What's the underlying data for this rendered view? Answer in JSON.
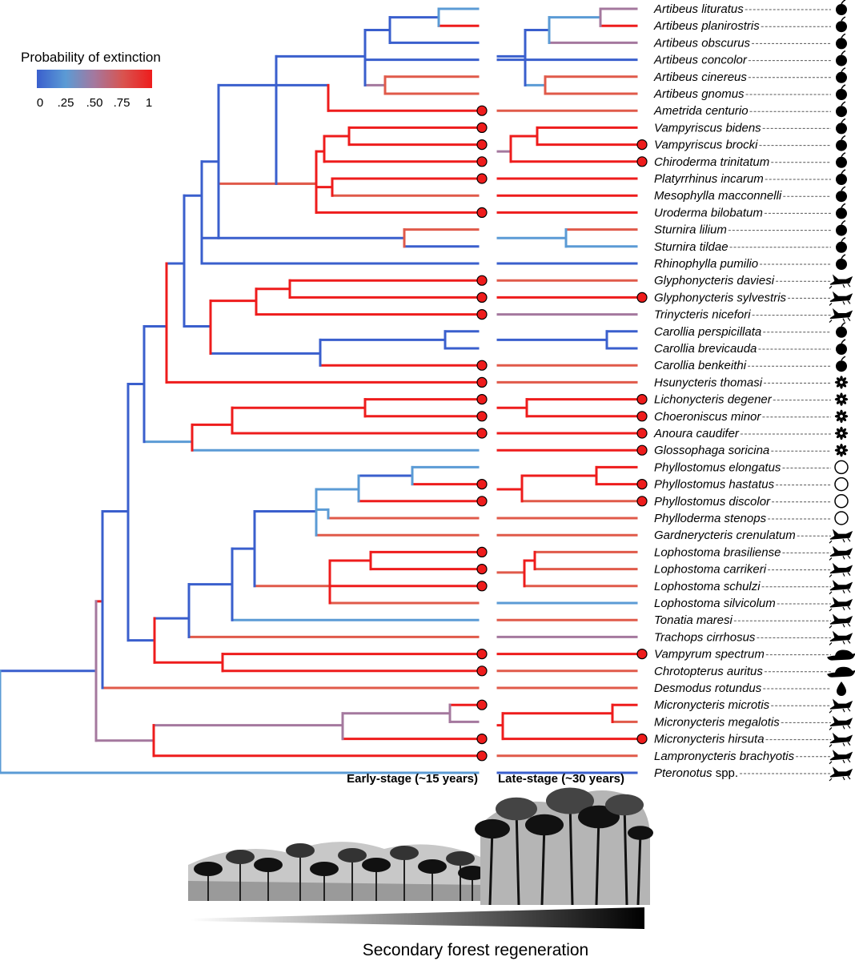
{
  "legend": {
    "title": "Probability of extinction",
    "ticks": [
      "0",
      ".25",
      ".50",
      ".75",
      "1"
    ],
    "gradient": [
      "#3a5fcd",
      "#5b9bd5",
      "#a4789e",
      "#d9534f",
      "#ee1c1c"
    ]
  },
  "colors": {
    "blue": "#3a5fcd",
    "lightblue": "#5b9bd5",
    "mauve": "#a4789e",
    "red": "#ee1c1c",
    "salmon": "#e05a4a",
    "extinct_dot": "#ee1c1c"
  },
  "species": [
    {
      "name": "Artibeus lituratus",
      "suffix": "",
      "diet": "fruit",
      "early_extinct": false,
      "late_extinct": false
    },
    {
      "name": "Artibeus planirostris",
      "suffix": "",
      "diet": "fruit",
      "early_extinct": false,
      "late_extinct": false
    },
    {
      "name": "Artibeus obscurus",
      "suffix": "",
      "diet": "fruit",
      "early_extinct": false,
      "late_extinct": false
    },
    {
      "name": "Artibeus concolor",
      "suffix": "",
      "diet": "fruit",
      "early_extinct": false,
      "late_extinct": false
    },
    {
      "name": "Artibeus cinereus",
      "suffix": "",
      "diet": "fruit",
      "early_extinct": false,
      "late_extinct": false
    },
    {
      "name": "Artibeus gnomus",
      "suffix": "",
      "diet": "fruit",
      "early_extinct": false,
      "late_extinct": false
    },
    {
      "name": "Ametrida centurio",
      "suffix": "",
      "diet": "fruit",
      "early_extinct": true,
      "late_extinct": false
    },
    {
      "name": "Vampyriscus bidens",
      "suffix": "",
      "diet": "fruit",
      "early_extinct": true,
      "late_extinct": false
    },
    {
      "name": "Vampyriscus brocki",
      "suffix": "",
      "diet": "fruit",
      "early_extinct": true,
      "late_extinct": true
    },
    {
      "name": "Chiroderma trinitatum",
      "suffix": "",
      "diet": "fruit",
      "early_extinct": true,
      "late_extinct": true
    },
    {
      "name": "Platyrrhinus incarum",
      "suffix": "",
      "diet": "fruit",
      "early_extinct": true,
      "late_extinct": false
    },
    {
      "name": "Mesophylla macconnelli",
      "suffix": "",
      "diet": "fruit",
      "early_extinct": false,
      "late_extinct": false
    },
    {
      "name": "Uroderma bilobatum",
      "suffix": "",
      "diet": "fruit",
      "early_extinct": true,
      "late_extinct": false
    },
    {
      "name": "Sturnira lilium",
      "suffix": "",
      "diet": "fruit",
      "early_extinct": false,
      "late_extinct": false
    },
    {
      "name": "Sturnira tildae",
      "suffix": "",
      "diet": "fruit",
      "early_extinct": false,
      "late_extinct": false
    },
    {
      "name": "Rhinophylla pumilio",
      "suffix": "",
      "diet": "fruit",
      "early_extinct": false,
      "late_extinct": false
    },
    {
      "name": "Glyphonycteris daviesi",
      "suffix": "",
      "diet": "insect",
      "early_extinct": true,
      "late_extinct": false
    },
    {
      "name": "Glyphonycteris sylvestris",
      "suffix": "",
      "diet": "insect",
      "early_extinct": true,
      "late_extinct": true
    },
    {
      "name": "Trinycteris nicefori",
      "suffix": "",
      "diet": "insect",
      "early_extinct": true,
      "late_extinct": false
    },
    {
      "name": "Carollia perspicillata",
      "suffix": "",
      "diet": "fruit",
      "early_extinct": false,
      "late_extinct": false
    },
    {
      "name": "Carollia brevicauda",
      "suffix": "",
      "diet": "fruit",
      "early_extinct": false,
      "late_extinct": false
    },
    {
      "name": "Carollia benkeithi",
      "suffix": "",
      "diet": "fruit",
      "early_extinct": true,
      "late_extinct": false
    },
    {
      "name": "Hsunycteris thomasi",
      "suffix": "",
      "diet": "nectar",
      "early_extinct": true,
      "late_extinct": false
    },
    {
      "name": "Lichonycteris degener",
      "suffix": "",
      "diet": "nectar",
      "early_extinct": true,
      "late_extinct": true
    },
    {
      "name": "Choeroniscus minor",
      "suffix": "",
      "diet": "nectar",
      "early_extinct": true,
      "late_extinct": true
    },
    {
      "name": "Anoura caudifer",
      "suffix": "",
      "diet": "nectar",
      "early_extinct": true,
      "late_extinct": true
    },
    {
      "name": "Glossophaga soricina",
      "suffix": "",
      "diet": "nectar",
      "early_extinct": false,
      "late_extinct": true
    },
    {
      "name": "Phyllostomus elongatus",
      "suffix": "",
      "diet": "omnivore",
      "early_extinct": false,
      "late_extinct": false
    },
    {
      "name": "Phyllostomus hastatus",
      "suffix": "",
      "diet": "omnivore",
      "early_extinct": true,
      "late_extinct": true
    },
    {
      "name": "Phyllostomus discolor",
      "suffix": "",
      "diet": "omnivore",
      "early_extinct": true,
      "late_extinct": true
    },
    {
      "name": "Phylloderma stenops",
      "suffix": "",
      "diet": "omnivore",
      "early_extinct": false,
      "late_extinct": false
    },
    {
      "name": "Gardnerycteris crenulatum",
      "suffix": "",
      "diet": "insect",
      "early_extinct": false,
      "late_extinct": false
    },
    {
      "name": "Lophostoma brasiliense",
      "suffix": "",
      "diet": "insect",
      "early_extinct": true,
      "late_extinct": false
    },
    {
      "name": "Lophostoma carrikeri",
      "suffix": "",
      "diet": "insect",
      "early_extinct": true,
      "late_extinct": false
    },
    {
      "name": "Lophostoma schulzi",
      "suffix": "",
      "diet": "insect",
      "early_extinct": true,
      "late_extinct": false
    },
    {
      "name": "Lophostoma silvicolum",
      "suffix": "",
      "diet": "insect",
      "early_extinct": false,
      "late_extinct": false
    },
    {
      "name": "Tonatia maresi",
      "suffix": "",
      "diet": "insect",
      "early_extinct": false,
      "late_extinct": false
    },
    {
      "name": "Trachops cirrhosus",
      "suffix": "",
      "diet": "insect",
      "early_extinct": false,
      "late_extinct": false
    },
    {
      "name": "Vampyrum spectrum",
      "suffix": "",
      "diet": "carnivore",
      "early_extinct": true,
      "late_extinct": true
    },
    {
      "name": "Chrotopterus auritus",
      "suffix": "",
      "diet": "carnivore",
      "early_extinct": true,
      "late_extinct": false
    },
    {
      "name": "Desmodus rotundus",
      "suffix": "",
      "diet": "blood",
      "early_extinct": false,
      "late_extinct": false
    },
    {
      "name": "Micronycteris microtis",
      "suffix": "",
      "diet": "insect",
      "early_extinct": true,
      "late_extinct": false
    },
    {
      "name": "Micronycteris megalotis",
      "suffix": "",
      "diet": "insect",
      "early_extinct": false,
      "late_extinct": false
    },
    {
      "name": "Micronycteris hirsuta",
      "suffix": "",
      "diet": "insect",
      "early_extinct": true,
      "late_extinct": true
    },
    {
      "name": "Lampronycteris brachyotis",
      "suffix": "",
      "diet": "insect",
      "early_extinct": true,
      "late_extinct": false
    },
    {
      "name": "Pteronotus",
      "suffix": " spp.",
      "diet": "insect",
      "early_extinct": false,
      "late_extinct": false
    }
  ],
  "stages": {
    "early": "Early-stage (~15 years)",
    "late": "Late-stage (~30 years)"
  },
  "x_caption": "Secondary forest regeneration"
}
